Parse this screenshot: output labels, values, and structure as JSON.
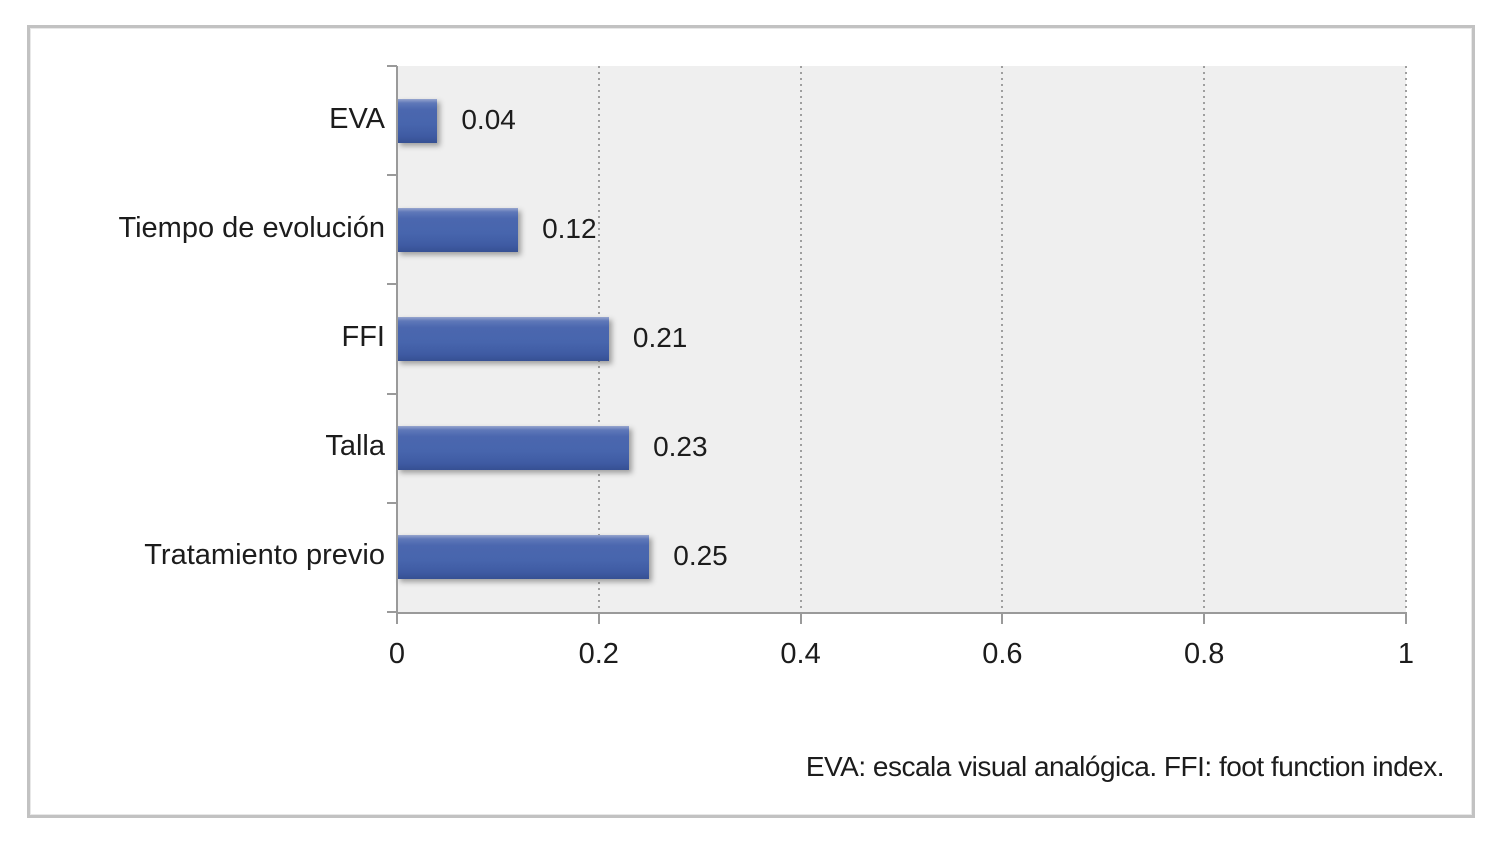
{
  "chart_data": {
    "type": "bar",
    "orientation": "horizontal",
    "title": "",
    "categories": [
      "EVA",
      "Tiempo de evolución",
      "FFI",
      "Talla",
      "Tratamiento previo"
    ],
    "values": [
      0.04,
      0.12,
      0.21,
      0.23,
      0.25
    ],
    "data_labels": [
      "0.04",
      "0.12",
      "0.21",
      "0.23",
      "0.25"
    ],
    "xlabel": "",
    "ylabel": "",
    "xlim": [
      0,
      1
    ],
    "x_ticks": [
      0,
      0.2,
      0.4,
      0.6,
      0.8,
      1
    ],
    "x_tick_labels": [
      "0",
      "0.2",
      "0.4",
      "0.6",
      "0.8",
      "1"
    ],
    "legend": "none",
    "grid": "vertical-dotted",
    "colors": {
      "bar": "#4765ad",
      "bar_highlight": "#97a5ce",
      "bar_shadow_edge": "#365093",
      "plot_background": "#efefef",
      "axis": "#9a9a9a",
      "gridline": "#9f9f9f",
      "text": "#1c1c1c",
      "frame_border": "#c2c2c2"
    },
    "footnote": "EVA: escala visual analógica. FFI: foot function index."
  }
}
